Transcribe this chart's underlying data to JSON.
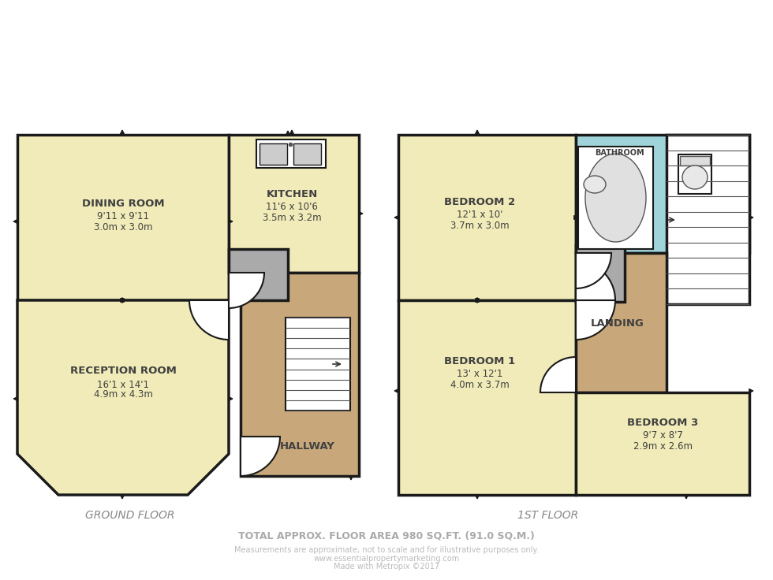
{
  "bg_color": "#ffffff",
  "wall_color": "#1a1a1a",
  "room_fill_yellow": "#f0ebb8",
  "room_fill_tan": "#c8a87a",
  "room_fill_gray": "#aaaaaa",
  "room_fill_blue": "#9ed4da",
  "room_fill_white": "#ffffff",
  "ground_floor_label": "GROUND FLOOR",
  "first_floor_label": "1ST FLOOR",
  "total_area_label": "TOTAL APPROX. FLOOR AREA 980 SQ.FT. (91.0 SQ.M.)",
  "disclaimer_line1": "Measurements are approximate, not to scale and for illustrative purposes only.",
  "disclaimer_line2": "www.essentialpropertymarketing.com",
  "disclaimer_line3": "Made with Metropix ©2017",
  "rooms": {
    "dining_room": {
      "label": "DINING ROOM",
      "line1": "9'11 x 9'11",
      "line2": "3.0m x 3.0m"
    },
    "kitchen": {
      "label": "KITCHEN",
      "line1": "11'6 x 10'6",
      "line2": "3.5m x 3.2m"
    },
    "reception_room": {
      "label": "RECEPTION ROOM",
      "line1": "16'1 x 14'1",
      "line2": "4.9m x 4.3m"
    },
    "hallway": {
      "label": "HALLWAY"
    },
    "bedroom1": {
      "label": "BEDROOM 1",
      "line1": "13' x 12'1",
      "line2": "4.0m x 3.7m"
    },
    "bedroom2": {
      "label": "BEDROOM 2",
      "line1": "12'1 x 10'",
      "line2": "3.7m x 3.0m"
    },
    "bedroom3": {
      "label": "BEDROOM 3",
      "line1": "9'7 x 8'7",
      "line2": "2.9m x 2.6m"
    },
    "bathroom": {
      "label": "BATHROOM"
    },
    "landing": {
      "label": "LANDING"
    }
  }
}
